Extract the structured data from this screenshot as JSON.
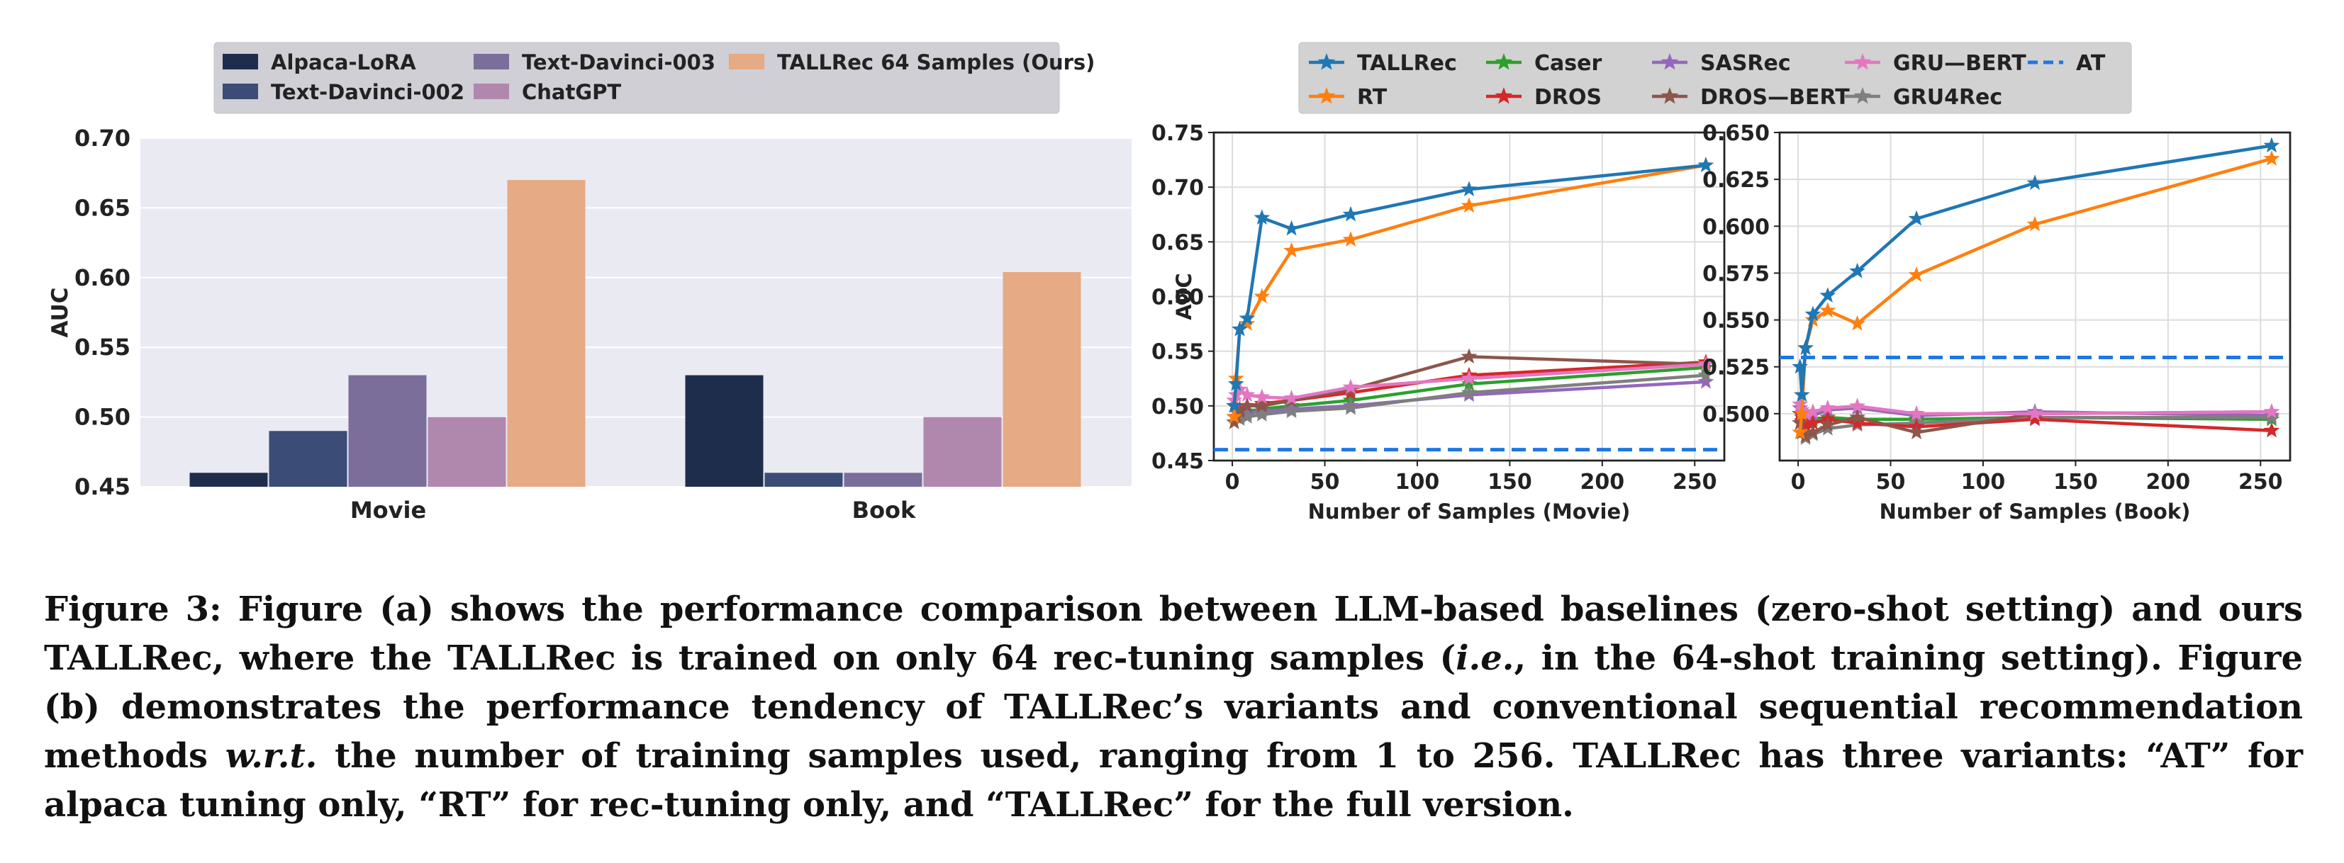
{
  "chart_data": [
    {
      "type": "bar",
      "panel": "a",
      "xlabel": "",
      "ylabel": "AUC",
      "ylim": [
        0.45,
        0.7
      ],
      "yticks": [
        "0.45",
        "0.50",
        "0.55",
        "0.60",
        "0.65",
        "0.70"
      ],
      "grid": true,
      "legend_position": "top",
      "categories": [
        "Movie",
        "Book"
      ],
      "series": [
        {
          "name": "Alpaca-LoRA",
          "color": "#1f2d4d",
          "values": [
            0.46,
            0.53
          ]
        },
        {
          "name": "Text-Davinci-002",
          "color": "#3b4c76",
          "values": [
            0.49,
            0.46
          ]
        },
        {
          "name": "Text-Davinci-003",
          "color": "#7b6e9b",
          "values": [
            0.53,
            0.46
          ]
        },
        {
          "name": "ChatGPT",
          "color": "#b088ad",
          "values": [
            0.5,
            0.5
          ]
        },
        {
          "name": "TALLRec 64 Samples (Ours)",
          "color": "#e6aa84",
          "values": [
            0.67,
            0.604
          ]
        }
      ]
    },
    {
      "type": "line",
      "panel": "b-movie",
      "xlabel": "Number of Samples (Movie)",
      "ylabel": "AUC",
      "xlim": [
        -10,
        266
      ],
      "ylim": [
        0.45,
        0.75
      ],
      "xticks": [
        "0",
        "50",
        "100",
        "150",
        "200",
        "250"
      ],
      "yticks": [
        "0.45",
        "0.50",
        "0.55",
        "0.60",
        "0.65",
        "0.70",
        "0.75"
      ],
      "grid": true,
      "x": [
        1,
        2,
        4,
        8,
        16,
        32,
        64,
        128,
        256
      ],
      "series": [
        {
          "name": "TALLRec",
          "color": "#1f77b4",
          "values": [
            0.5,
            0.52,
            0.57,
            0.58,
            0.672,
            0.662,
            0.675,
            0.698,
            0.72
          ]
        },
        {
          "name": "RT",
          "color": "#ff7f0e",
          "values": [
            0.49,
            0.525,
            0.57,
            0.575,
            0.6,
            0.642,
            0.652,
            0.683,
            0.72
          ]
        },
        {
          "name": "Caser",
          "color": "#2ca02c",
          "values": [
            0.49,
            0.49,
            0.49,
            0.495,
            0.497,
            0.5,
            0.505,
            0.52,
            0.535
          ]
        },
        {
          "name": "DROS",
          "color": "#d62728",
          "values": [
            0.5,
            0.5,
            0.497,
            0.5,
            0.502,
            0.505,
            0.512,
            0.528,
            0.54
          ]
        },
        {
          "name": "SASRec",
          "color": "#9467bd",
          "values": [
            0.49,
            0.49,
            0.492,
            0.493,
            0.495,
            0.497,
            0.5,
            0.51,
            0.522
          ]
        },
        {
          "name": "DROS—BERT",
          "color": "#8c564b",
          "values": [
            0.485,
            0.49,
            0.495,
            0.5,
            0.5,
            0.505,
            0.515,
            0.545,
            0.538
          ]
        },
        {
          "name": "GRU—BERT",
          "color": "#e377c2",
          "values": [
            0.505,
            0.51,
            0.515,
            0.51,
            0.508,
            0.507,
            0.517,
            0.525,
            0.538
          ]
        },
        {
          "name": "GRU4Rec",
          "color": "#7f7f7f",
          "values": [
            0.5,
            0.49,
            0.488,
            0.49,
            0.492,
            0.495,
            0.498,
            0.512,
            0.528
          ]
        },
        {
          "name": "AT",
          "color": "#1f77e4",
          "dashed": true,
          "constant": 0.46
        }
      ]
    },
    {
      "type": "line",
      "panel": "b-book",
      "xlabel": "Number of Samples (Book)",
      "ylabel": "",
      "xlim": [
        -10,
        266
      ],
      "ylim": [
        0.475,
        0.65
      ],
      "xticks": [
        "0",
        "50",
        "100",
        "150",
        "200",
        "250"
      ],
      "yticks": [
        "0.500",
        "0.525",
        "0.550",
        "0.575",
        "0.600",
        "0.625",
        "0.650"
      ],
      "grid": true,
      "x": [
        1,
        2,
        4,
        8,
        16,
        32,
        64,
        128,
        256
      ],
      "series": [
        {
          "name": "TALLRec",
          "color": "#1f77b4",
          "values": [
            0.525,
            0.51,
            0.535,
            0.553,
            0.563,
            0.576,
            0.604,
            0.623,
            0.643
          ]
        },
        {
          "name": "RT",
          "color": "#ff7f0e",
          "values": [
            0.49,
            0.5,
            0.535,
            0.55,
            0.555,
            0.548,
            0.574,
            0.601,
            0.636
          ]
        },
        {
          "name": "Caser",
          "color": "#2ca02c",
          "values": [
            0.5,
            0.498,
            0.496,
            0.497,
            0.498,
            0.497,
            0.497,
            0.498,
            0.497
          ]
        },
        {
          "name": "DROS",
          "color": "#d62728",
          "values": [
            0.5,
            0.496,
            0.494,
            0.495,
            0.497,
            0.495,
            0.493,
            0.497,
            0.491
          ]
        },
        {
          "name": "SASRec",
          "color": "#9467bd",
          "values": [
            0.503,
            0.5,
            0.498,
            0.499,
            0.502,
            0.503,
            0.499,
            0.501,
            0.499
          ]
        },
        {
          "name": "DROS—BERT",
          "color": "#8c564b",
          "values": [
            0.495,
            0.49,
            0.488,
            0.49,
            0.494,
            0.498,
            0.49,
            0.5,
            0.501
          ]
        },
        {
          "name": "GRU—BERT",
          "color": "#e377c2",
          "values": [
            0.505,
            0.502,
            0.5,
            0.501,
            0.503,
            0.504,
            0.5,
            0.5,
            0.501
          ]
        },
        {
          "name": "GRU4Rec",
          "color": "#7f7f7f",
          "values": [
            0.495,
            0.49,
            0.487,
            0.489,
            0.492,
            0.494,
            0.495,
            0.498,
            0.498
          ]
        },
        {
          "name": "AT",
          "color": "#1f77e4",
          "dashed": true,
          "constant": 0.53
        }
      ]
    }
  ],
  "line_legend": [
    "TALLRec",
    "Caser",
    "SASRec",
    "GRU—BERT",
    "AT",
    "RT",
    "DROS",
    "DROS—BERT",
    "GRU4Rec"
  ],
  "caption": {
    "part1": "Figure 3: Figure (a) shows the performance comparison between LLM-based baselines (zero-shot setting) and ours TALLRec, where the TALLRec is trained on only 64 rec-tuning samples (",
    "ie": "i.e.",
    "part2": ", in the 64-shot training setting). Figure (b) demonstrates the performance tendency of TALLRec’s variants and conventional sequential recommendation methods ",
    "wrt": "w.r.t.",
    "part3": " the number of training samples used, ranging from 1 to 256. TALLRec has three variants: “AT” for alpaca tuning only, “RT” for rec-tuning only, and “TALLRec” for the full version."
  }
}
